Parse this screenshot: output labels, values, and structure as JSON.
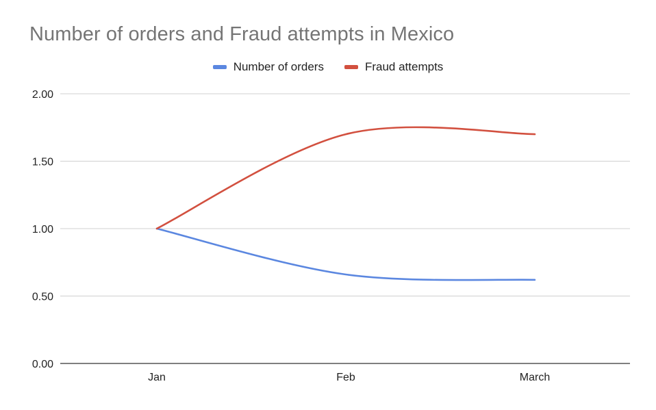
{
  "chart_data": {
    "type": "line",
    "title": "Number of orders and Fraud attempts in Mexico",
    "xlabel": "",
    "ylabel": "",
    "categories": [
      "Jan",
      "Feb",
      "March"
    ],
    "series": [
      {
        "name": "Number of orders",
        "values": [
          1.0,
          0.66,
          0.62
        ],
        "color": "#5B87E0"
      },
      {
        "name": "Fraud attempts",
        "values": [
          1.0,
          1.7,
          1.7
        ],
        "color": "#D2503F"
      }
    ],
    "ylim": [
      0,
      2
    ],
    "yticks": [
      "0.00",
      "0.50",
      "1.00",
      "1.50",
      "2.00"
    ],
    "ytick_values": [
      0,
      0.5,
      1.0,
      1.5,
      2.0
    ],
    "grid": true,
    "legend_position": "top-center",
    "smooth": true
  }
}
